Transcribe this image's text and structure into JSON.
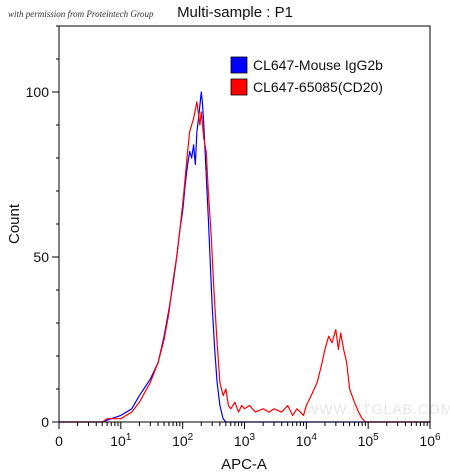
{
  "watermark": "with permission from Proteintech Group",
  "site_watermark": "WWW.PTGLAB.COM",
  "chart_data": {
    "type": "histogram",
    "title": "Multi-sample : P1",
    "xlabel": "APC-A",
    "ylabel": "Count",
    "x_scale": "log",
    "xlim": [
      1,
      1000000
    ],
    "ylim": [
      0,
      120
    ],
    "x_ticks": [
      {
        "value": 1,
        "base": "0",
        "exp": ""
      },
      {
        "value": 10,
        "base": "10",
        "exp": "1"
      },
      {
        "value": 100,
        "base": "10",
        "exp": "2"
      },
      {
        "value": 1000,
        "base": "10",
        "exp": "3"
      },
      {
        "value": 10000,
        "base": "10",
        "exp": "4"
      },
      {
        "value": 100000,
        "base": "10",
        "exp": "5"
      },
      {
        "value": 1000000,
        "base": "10",
        "exp": "6"
      }
    ],
    "y_ticks": [
      {
        "value": 0,
        "label": "0"
      },
      {
        "value": 50,
        "label": "50"
      },
      {
        "value": 100,
        "label": "100"
      }
    ],
    "legend_position": "top-right",
    "series": [
      {
        "name": "CL647-Mouse IgG2b",
        "color": "#0000ff",
        "points": [
          [
            1,
            0
          ],
          [
            5,
            0
          ],
          [
            7,
            1
          ],
          [
            10,
            2
          ],
          [
            15,
            4
          ],
          [
            20,
            8
          ],
          [
            30,
            13
          ],
          [
            40,
            18
          ],
          [
            50,
            26
          ],
          [
            60,
            34
          ],
          [
            70,
            42
          ],
          [
            80,
            50
          ],
          [
            90,
            58
          ],
          [
            100,
            64
          ],
          [
            110,
            72
          ],
          [
            120,
            78
          ],
          [
            130,
            82
          ],
          [
            140,
            80
          ],
          [
            150,
            84
          ],
          [
            160,
            78
          ],
          [
            170,
            88
          ],
          [
            180,
            92
          ],
          [
            190,
            96
          ],
          [
            200,
            100
          ],
          [
            210,
            96
          ],
          [
            220,
            90
          ],
          [
            240,
            75
          ],
          [
            260,
            62
          ],
          [
            280,
            48
          ],
          [
            300,
            35
          ],
          [
            330,
            22
          ],
          [
            360,
            12
          ],
          [
            400,
            5
          ],
          [
            450,
            1
          ],
          [
            500,
            0
          ],
          [
            1000000,
            0
          ]
        ]
      },
      {
        "name": "CL647-65085(CD20)",
        "color": "#ff0000",
        "points": [
          [
            1,
            0
          ],
          [
            5,
            0
          ],
          [
            6,
            1
          ],
          [
            10,
            1
          ],
          [
            15,
            3
          ],
          [
            20,
            6
          ],
          [
            30,
            12
          ],
          [
            40,
            18
          ],
          [
            50,
            25
          ],
          [
            60,
            33
          ],
          [
            70,
            43
          ],
          [
            80,
            50
          ],
          [
            90,
            58
          ],
          [
            100,
            66
          ],
          [
            110,
            74
          ],
          [
            120,
            82
          ],
          [
            130,
            88
          ],
          [
            150,
            92
          ],
          [
            170,
            97
          ],
          [
            190,
            90
          ],
          [
            200,
            94
          ],
          [
            220,
            86
          ],
          [
            240,
            82
          ],
          [
            260,
            70
          ],
          [
            290,
            56
          ],
          [
            320,
            40
          ],
          [
            360,
            24
          ],
          [
            400,
            12
          ],
          [
            450,
            8
          ],
          [
            500,
            10
          ],
          [
            550,
            5
          ],
          [
            600,
            4
          ],
          [
            700,
            6
          ],
          [
            800,
            3
          ],
          [
            900,
            5
          ],
          [
            1000,
            4
          ],
          [
            1200,
            5
          ],
          [
            1500,
            3
          ],
          [
            2000,
            4
          ],
          [
            2500,
            3
          ],
          [
            3000,
            4
          ],
          [
            4000,
            3
          ],
          [
            5000,
            5
          ],
          [
            6000,
            2
          ],
          [
            7000,
            4
          ],
          [
            8000,
            3
          ],
          [
            9000,
            2
          ],
          [
            10000,
            5
          ],
          [
            12000,
            8
          ],
          [
            15000,
            12
          ],
          [
            18000,
            18
          ],
          [
            20000,
            22
          ],
          [
            23000,
            26
          ],
          [
            26000,
            24
          ],
          [
            30000,
            28
          ],
          [
            33000,
            22
          ],
          [
            36000,
            27
          ],
          [
            40000,
            22
          ],
          [
            45000,
            18
          ],
          [
            50000,
            10
          ],
          [
            60000,
            6
          ],
          [
            70000,
            3
          ],
          [
            80000,
            1
          ],
          [
            90000,
            0
          ],
          [
            1000000,
            0
          ]
        ]
      }
    ]
  }
}
